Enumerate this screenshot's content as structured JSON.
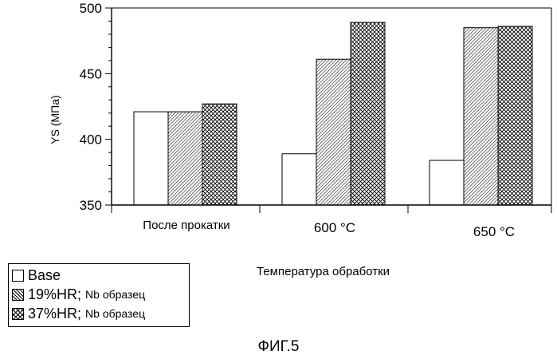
{
  "chart_data": {
    "type": "bar",
    "ylabel": "YS (МПа)",
    "xlabel": "Температура обработки",
    "ylim": [
      350,
      500
    ],
    "yticks": [
      350,
      400,
      450,
      500
    ],
    "grid": false,
    "categories": [
      "После прокатки",
      "600 °C",
      "650 °C"
    ],
    "series": [
      {
        "name": "Base",
        "name_suffix": "",
        "pattern": "blank",
        "values": [
          421,
          389,
          384
        ]
      },
      {
        "name": "19%HR;",
        "name_suffix": "Nb образец",
        "pattern": "hatch",
        "values": [
          421,
          461,
          485
        ]
      },
      {
        "name": "37%HR;",
        "name_suffix": "Nb образец",
        "pattern": "crosshatch",
        "values": [
          427,
          489,
          486
        ]
      }
    ],
    "legend_position": "bottom-left"
  },
  "caption": "ФИГ.5"
}
